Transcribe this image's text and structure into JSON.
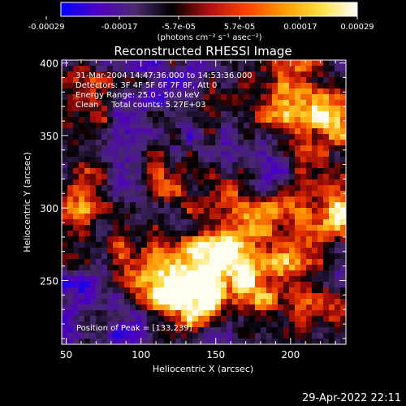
{
  "chart_data": {
    "type": "heatmap",
    "title": "Reconstructed RHESSI Image",
    "xlabel": "Heliocentric X (arcsec)",
    "ylabel": "Heliocentric Y (arcsec)",
    "xlim": [
      47,
      237
    ],
    "ylim": [
      206,
      402
    ],
    "x_ticks": [
      50,
      100,
      150,
      200
    ],
    "y_ticks": [
      250,
      300,
      350,
      400
    ],
    "colorbar": {
      "ticks": [
        "-0.00029",
        "-0.00017",
        "-5.7e-05",
        "5.7e-05",
        "0.00017",
        "0.00029"
      ],
      "unit_label": "(photons cm⁻² s⁻¹ asec⁻²)",
      "colors": [
        "#0000ff",
        "#5000c0",
        "#4a2a70",
        "#000000",
        "#b01010",
        "#ff4000",
        "#ff9a00",
        "#ffe040",
        "#ffffff"
      ]
    },
    "info_lines": [
      "31-Mar-2004 14:47:36.000 to 14:53:36.000",
      "Detectors: 3F 4F 5F 6F 7F 8F, Att 0",
      "Energy Range: 25.0 - 50.0 keV",
      "Clean     Total counts: 5.27E+03"
    ],
    "peak_label": "Position of Peak = [133,239]",
    "peak_position": [
      133,
      239
    ],
    "hot_regions": [
      {
        "x": 105,
        "y": 262,
        "intensity": 0.72
      },
      {
        "x": 132,
        "y": 238,
        "intensity": 1.0
      },
      {
        "x": 155,
        "y": 262,
        "intensity": 0.8
      },
      {
        "x": 165,
        "y": 295,
        "intensity": 0.6
      },
      {
        "x": 200,
        "y": 272,
        "intensity": 0.62
      },
      {
        "x": 232,
        "y": 300,
        "intensity": 0.8
      },
      {
        "x": 205,
        "y": 378,
        "intensity": 0.7
      },
      {
        "x": 168,
        "y": 372,
        "intensity": 0.45
      },
      {
        "x": 228,
        "y": 355,
        "intensity": 0.55
      },
      {
        "x": 62,
        "y": 345,
        "intensity": 0.5
      },
      {
        "x": 60,
        "y": 298,
        "intensity": 0.5
      },
      {
        "x": 60,
        "y": 395,
        "intensity": 0.4
      },
      {
        "x": 120,
        "y": 320,
        "intensity": 0.4
      },
      {
        "x": 178,
        "y": 240,
        "intensity": 0.45
      },
      {
        "x": 215,
        "y": 228,
        "intensity": 0.4
      }
    ]
  },
  "footer": {
    "timestamp": "29-Apr-2022 22:11"
  }
}
